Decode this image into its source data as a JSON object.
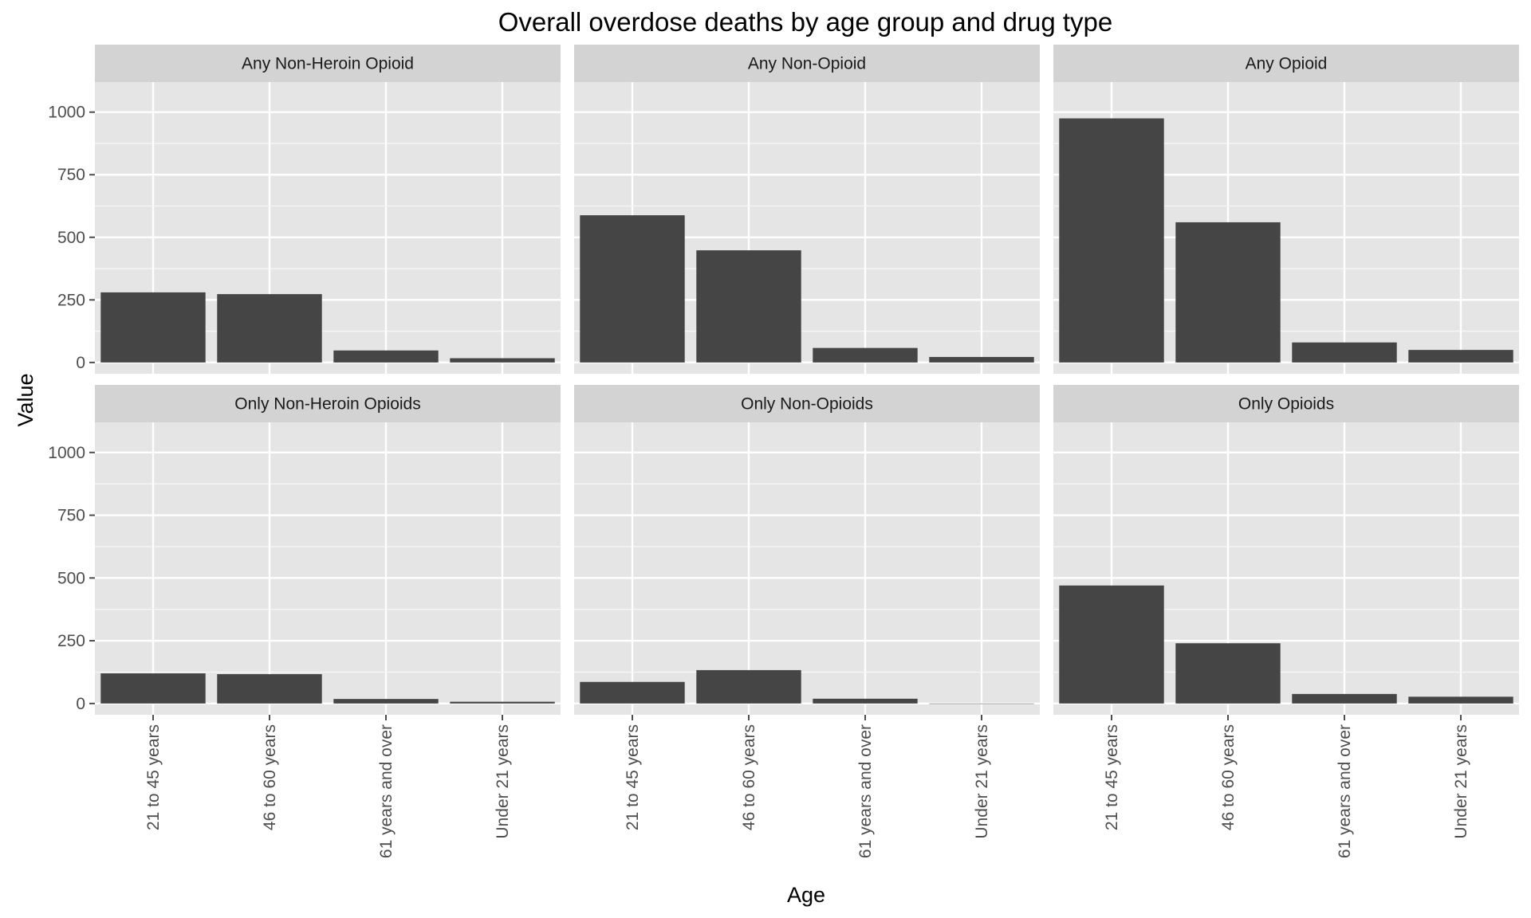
{
  "chart_data": {
    "type": "bar",
    "title": "Overall overdose deaths by age group and drug type",
    "xlabel": "Age",
    "ylabel": "Value",
    "categories": [
      "21 to 45 years",
      "46 to 60 years",
      "61 years and over",
      "Under 21 years"
    ],
    "ylim": [
      -45,
      1120
    ],
    "yticks": [
      0,
      250,
      500,
      750,
      1000
    ],
    "grid": true,
    "legend": "none",
    "facets": [
      {
        "name": "Any Non-Heroin Opioid",
        "values": [
          280,
          273,
          48,
          17
        ]
      },
      {
        "name": "Any Non-Opioid",
        "values": [
          588,
          448,
          58,
          22
        ]
      },
      {
        "name": "Any Opioid",
        "values": [
          975,
          560,
          80,
          50
        ]
      },
      {
        "name": "Only Non-Heroin Opioids",
        "values": [
          120,
          117,
          18,
          7
        ]
      },
      {
        "name": "Only Non-Opioids",
        "values": [
          86,
          133,
          19,
          0
        ]
      },
      {
        "name": "Only Opioids",
        "values": [
          470,
          240,
          38,
          27
        ]
      }
    ],
    "colors": {
      "bar": "#454545",
      "panel_bg": "#e5e5e5",
      "strip_bg": "#d3d3d3",
      "grid": "#ffffff",
      "tick": "#4d4d4d"
    }
  }
}
